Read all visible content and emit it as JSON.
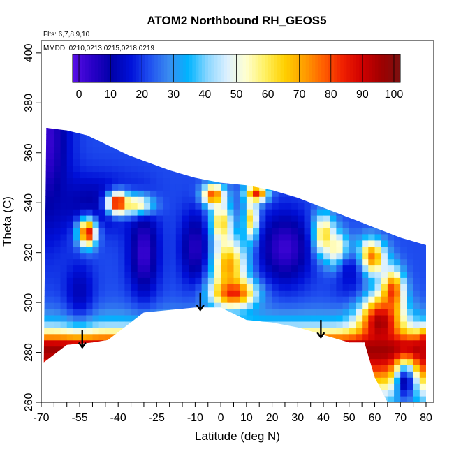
{
  "chart_data": {
    "type": "heatmap",
    "title": "ATOM2 Northbound RH_GEOS5",
    "flights_note": "Flts: 6,7,8,9,10",
    "dates_note": "MMDD: 0210,0213,0215,0218,0219",
    "xlabel": "Latitude (deg N)",
    "ylabel": "Theta (C)",
    "xlim": [
      -70,
      83
    ],
    "ylim": [
      260,
      405
    ],
    "x_tick_labels": [
      "-70",
      "-55",
      "-40",
      "-25",
      "-10",
      "0",
      "10",
      "20",
      "30",
      "40",
      "50",
      "60",
      "70",
      "80"
    ],
    "x_tick_values": [
      -70,
      -55,
      -40,
      -25,
      -10,
      0,
      10,
      20,
      30,
      40,
      50,
      60,
      70,
      80
    ],
    "x_minor_tick_step": 5,
    "y_tick_labels": [
      "260",
      "280",
      "300",
      "320",
      "340",
      "360",
      "380",
      "400"
    ],
    "y_tick_values": [
      260,
      280,
      300,
      320,
      340,
      360,
      380,
      400
    ],
    "colorbar": {
      "range": [
        -2,
        102
      ],
      "tick_labels": [
        "0",
        "10",
        "20",
        "30",
        "40",
        "50",
        "60",
        "70",
        "80",
        "90",
        "100"
      ],
      "tick_values": [
        0,
        10,
        20,
        30,
        40,
        50,
        60,
        70,
        80,
        90,
        100
      ],
      "colors": [
        "#5a0fe6",
        "#2a00c8",
        "#0000a8",
        "#0010d8",
        "#2050f0",
        "#3a8cf0",
        "#00b4ff",
        "#8ad6ff",
        "#dcf0ff",
        "#ffffd0",
        "#fff060",
        "#ffd000",
        "#ffa000",
        "#ff6000",
        "#f02000",
        "#d00000",
        "#a00000",
        "#7a1010"
      ]
    },
    "annotations": [
      {
        "type": "arrow",
        "x": -54,
        "y_top": 289,
        "y_bottom": 282
      },
      {
        "type": "arrow",
        "x": -8,
        "y_top": 304,
        "y_bottom": 297
      },
      {
        "type": "arrow",
        "x": 39,
        "y_top": 293,
        "y_bottom": 286
      }
    ],
    "boundary_top": [
      [
        -68,
        370
      ],
      [
        -60,
        369
      ],
      [
        -52,
        367
      ],
      [
        -44,
        363
      ],
      [
        -36,
        359
      ],
      [
        -28,
        356
      ],
      [
        -20,
        353
      ],
      [
        -10,
        350
      ],
      [
        0,
        348
      ],
      [
        10,
        347
      ],
      [
        20,
        345
      ],
      [
        30,
        342
      ],
      [
        40,
        338
      ],
      [
        50,
        334
      ],
      [
        60,
        330
      ],
      [
        70,
        326
      ],
      [
        80,
        323
      ]
    ],
    "boundary_bottom": [
      [
        -69,
        276
      ],
      [
        -60,
        283
      ],
      [
        -50,
        284
      ],
      [
        -44,
        285
      ],
      [
        -30,
        296
      ],
      [
        -10,
        298
      ],
      [
        0,
        298
      ],
      [
        10,
        293
      ],
      [
        20,
        292
      ],
      [
        30,
        290
      ],
      [
        40,
        287
      ],
      [
        50,
        284
      ],
      [
        56,
        284
      ],
      [
        60,
        270
      ],
      [
        65,
        260
      ],
      [
        70,
        260
      ],
      [
        80,
        260
      ]
    ],
    "fields": [
      {
        "kind": "base",
        "value": 22
      },
      {
        "kind": "vertical",
        "x0": -70,
        "x1": 83,
        "value": 78,
        "y_center": 276,
        "width": 14
      },
      {
        "kind": "vertical",
        "x0": -70,
        "x1": 83,
        "value": 96,
        "y_center": 281,
        "width": 6
      },
      {
        "kind": "blob",
        "x": -68,
        "y": 365,
        "sx": 6,
        "sy": 25,
        "value": 2
      },
      {
        "kind": "blob",
        "x": -50,
        "y": 340,
        "sx": 12,
        "sy": 8,
        "value": 10
      },
      {
        "kind": "blob",
        "x": -52,
        "y": 328,
        "sx": 2.5,
        "sy": 4,
        "value": 90
      },
      {
        "kind": "blob",
        "x": -40,
        "y": 340,
        "sx": 3,
        "sy": 3,
        "value": 95
      },
      {
        "kind": "blob",
        "x": -32,
        "y": 339,
        "sx": 4,
        "sy": 3,
        "value": 75
      },
      {
        "kind": "blob",
        "x": -3,
        "y": 343,
        "sx": 3,
        "sy": 3,
        "value": 85
      },
      {
        "kind": "blob",
        "x": 14,
        "y": 344,
        "sx": 3,
        "sy": 2.5,
        "value": 90
      },
      {
        "kind": "blob",
        "x": 0,
        "y": 332,
        "sx": 3,
        "sy": 6,
        "value": 65
      },
      {
        "kind": "blob",
        "x": 12,
        "y": 333,
        "sx": 2,
        "sy": 6,
        "value": 70
      },
      {
        "kind": "blob",
        "x": 3,
        "y": 315,
        "sx": 5,
        "sy": 8,
        "value": 72
      },
      {
        "kind": "blob",
        "x": 5,
        "y": 304,
        "sx": 6,
        "sy": 4,
        "value": 85
      },
      {
        "kind": "blob",
        "x": 40,
        "y": 327,
        "sx": 3,
        "sy": 6,
        "value": 70
      },
      {
        "kind": "blob",
        "x": 46,
        "y": 320,
        "sx": 3,
        "sy": 5,
        "value": 80
      },
      {
        "kind": "blob",
        "x": 58,
        "y": 318,
        "sx": 4,
        "sy": 5,
        "value": 88
      },
      {
        "kind": "blob",
        "x": 67,
        "y": 305,
        "sx": 3,
        "sy": 6,
        "value": 80
      },
      {
        "kind": "blob",
        "x": 62,
        "y": 292,
        "sx": 6,
        "sy": 8,
        "value": 96
      },
      {
        "kind": "blob",
        "x": 80,
        "y": 283,
        "sx": 2,
        "sy": 4,
        "value": 90
      },
      {
        "kind": "blob",
        "x": -30,
        "y": 320,
        "sx": 4,
        "sy": 12,
        "value": 2
      },
      {
        "kind": "blob",
        "x": -10,
        "y": 322,
        "sx": 4,
        "sy": 10,
        "value": 5
      },
      {
        "kind": "blob",
        "x": 25,
        "y": 322,
        "sx": 7,
        "sy": 10,
        "value": 2
      },
      {
        "kind": "blob",
        "x": 50,
        "y": 312,
        "sx": 5,
        "sy": 8,
        "value": 15
      },
      {
        "kind": "blob",
        "x": -55,
        "y": 305,
        "sx": 4,
        "sy": 8,
        "value": 12
      },
      {
        "kind": "blob",
        "x": 72,
        "y": 268,
        "sx": 3,
        "sy": 6,
        "value": 10
      }
    ]
  }
}
